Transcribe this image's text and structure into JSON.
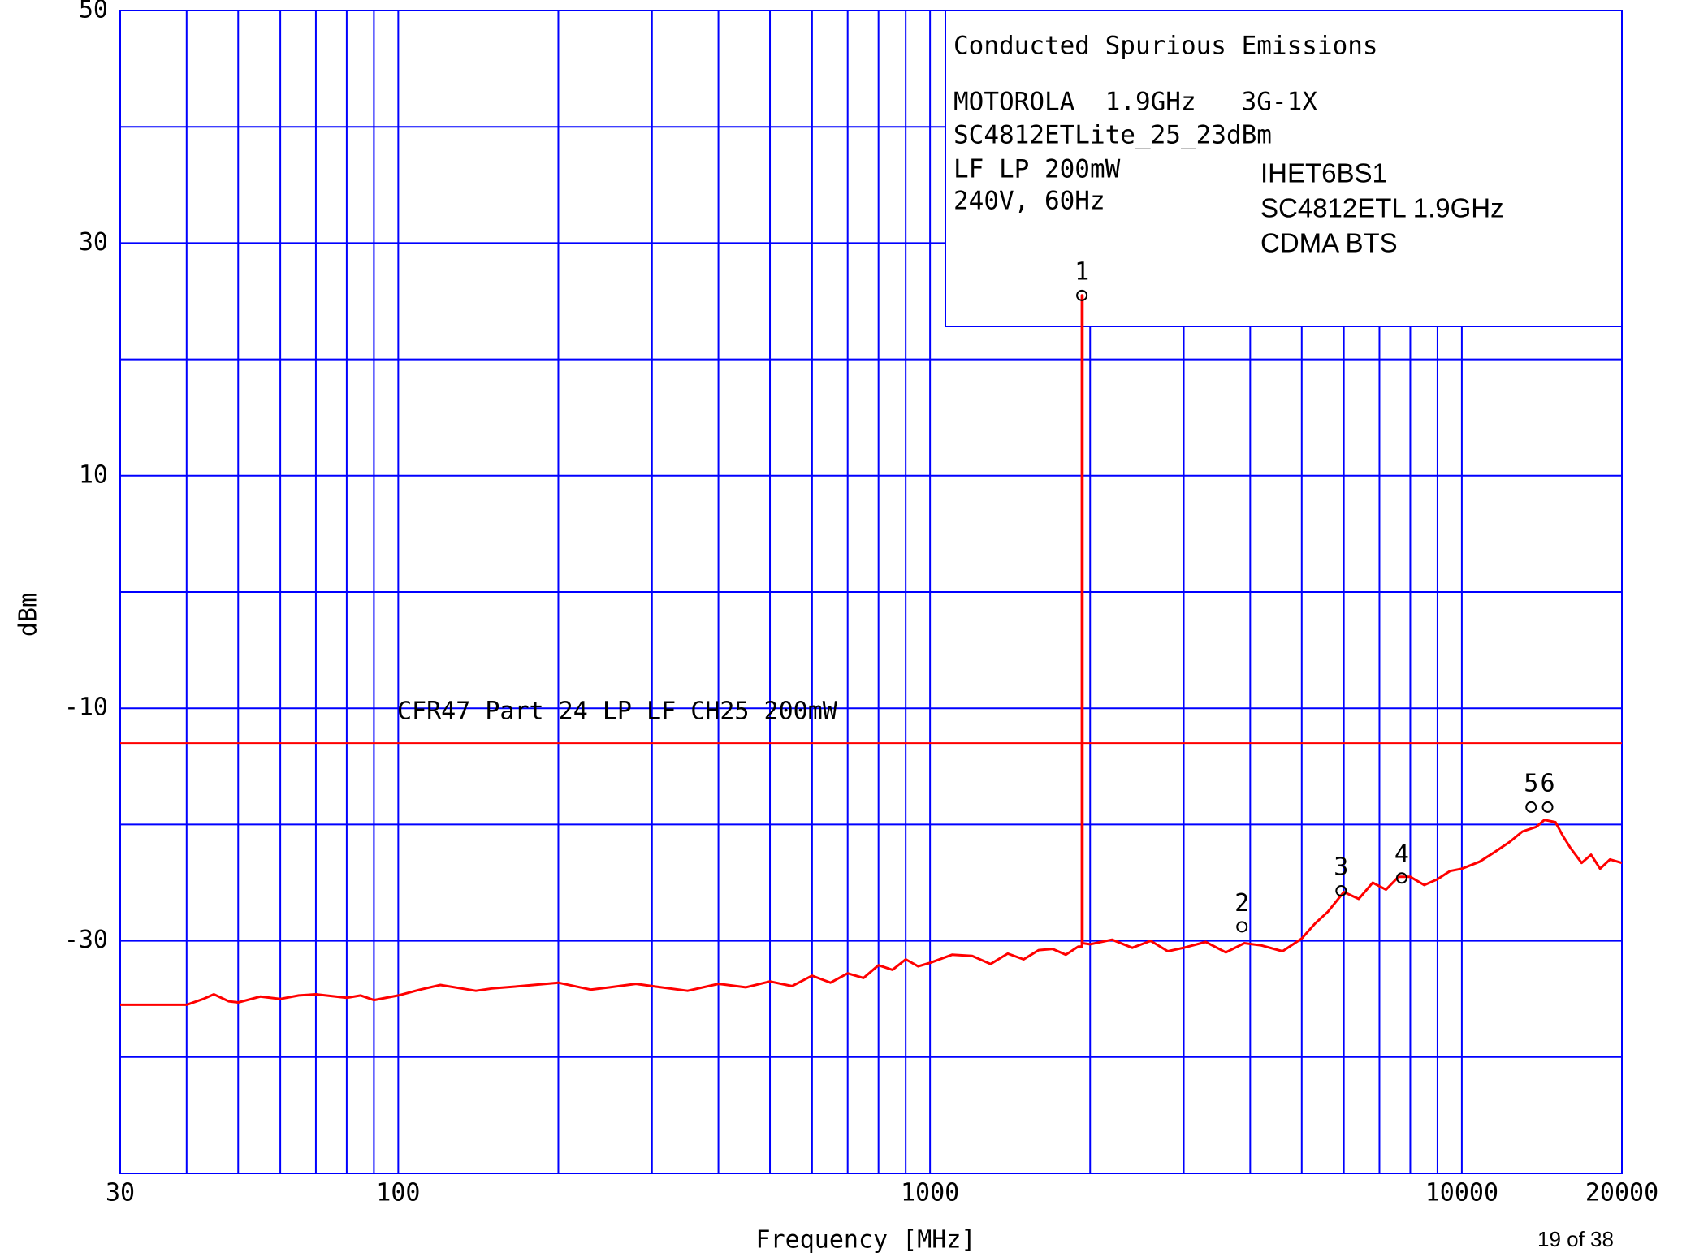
{
  "chart_data": {
    "type": "line",
    "xlabel": "Frequency [MHz]",
    "ylabel": "dBm",
    "xscale": "log",
    "xlim": [
      30,
      20000
    ],
    "ylim": [
      -50,
      50
    ],
    "xticks": [
      30,
      100,
      1000,
      10000,
      20000
    ],
    "yticks": [
      -30,
      -10,
      10,
      30,
      50
    ],
    "xgrid_minor": [
      40,
      50,
      60,
      70,
      80,
      90,
      200,
      300,
      400,
      500,
      600,
      700,
      800,
      900,
      2000,
      3000,
      4000,
      5000,
      6000,
      7000,
      8000,
      9000
    ],
    "ygrid_minor": [
      -40,
      -20,
      0,
      20,
      40
    ],
    "grid": true,
    "grid_color": "#0000ff",
    "x": [
      30,
      40,
      43,
      45,
      48,
      50,
      55,
      60,
      65,
      70,
      80,
      85,
      90,
      100,
      110,
      120,
      140,
      150,
      170,
      200,
      230,
      250,
      280,
      300,
      350,
      400,
      450,
      500,
      550,
      600,
      650,
      700,
      750,
      800,
      850,
      900,
      950,
      1000,
      1100,
      1200,
      1300,
      1400,
      1500,
      1600,
      1700,
      1800,
      1900,
      1930,
      1930,
      1935,
      1935,
      2000,
      2200,
      2400,
      2600,
      2800,
      3000,
      3300,
      3600,
      3900,
      4200,
      4600,
      5000,
      5300,
      5600,
      6000,
      6400,
      6800,
      7200,
      7600,
      8000,
      8500,
      9000,
      9500,
      10000,
      10800,
      11500,
      12300,
      13000,
      13800,
      14300,
      15000,
      15500,
      16000,
      16800,
      17500,
      18200,
      19000,
      20000
    ],
    "series": [
      {
        "name": "Trace",
        "color": "#ff0000",
        "values": [
          -35.5,
          -35.5,
          -35,
          -34.6,
          -35.2,
          -35.3,
          -34.8,
          -35,
          -34.7,
          -34.6,
          -34.9,
          -34.7,
          -35.1,
          -34.7,
          -34.2,
          -33.8,
          -34.3,
          -34.1,
          -33.9,
          -33.6,
          -34.2,
          -34,
          -33.7,
          -33.9,
          -34.3,
          -33.7,
          -34,
          -33.5,
          -33.9,
          -33,
          -33.6,
          -32.8,
          -33.2,
          -32.1,
          -32.5,
          -31.6,
          -32.2,
          -31.9,
          -31.2,
          -31.3,
          -32,
          -31.1,
          -31.6,
          -30.8,
          -30.7,
          -31.2,
          -30.5,
          -30.5,
          25.5,
          25.5,
          -30.2,
          -30.3,
          -29.9,
          -30.6,
          -30,
          -30.9,
          -30.6,
          -30.1,
          -31,
          -30.2,
          -30.4,
          -30.9,
          -29.8,
          -28.5,
          -27.5,
          -25.8,
          -26.4,
          -25,
          -25.6,
          -24.5,
          -24.5,
          -25.2,
          -24.7,
          -24,
          -23.8,
          -23.2,
          -22.4,
          -21.5,
          -20.6,
          -20.2,
          -19.6,
          -19.8,
          -21,
          -22,
          -23.3,
          -22.6,
          -23.8,
          -23,
          -23.3
        ]
      }
    ],
    "limit_line": {
      "label": "CFR47 Part 24 LP LF CH25 200mW",
      "value": -13,
      "color": "#ff0000"
    },
    "markers": [
      {
        "label": "1",
        "x": 1930,
        "y": 25.5
      },
      {
        "label": "2",
        "x": 3860,
        "y": -28.8
      },
      {
        "label": "3",
        "x": 5930,
        "y": -25.7
      },
      {
        "label": "4",
        "x": 7710,
        "y": -24.6
      },
      {
        "label": "5",
        "x": 13500,
        "y": -18.5
      },
      {
        "label": "6",
        "x": 14500,
        "y": -18.5
      }
    ],
    "info_box": [
      "Conducted Spurious Emissions",
      "MOTOROLA  1.9GHz   3G-1X",
      "SC4812ETLite_25_23dBm",
      "LF LP 200mW",
      "240V, 60Hz"
    ],
    "annotation": [
      "IHET6BS1",
      "SC4812ETL 1.9GHz",
      "CDMA BTS"
    ],
    "annotation_color": "#4b1050",
    "page_number": "19 of 38"
  }
}
